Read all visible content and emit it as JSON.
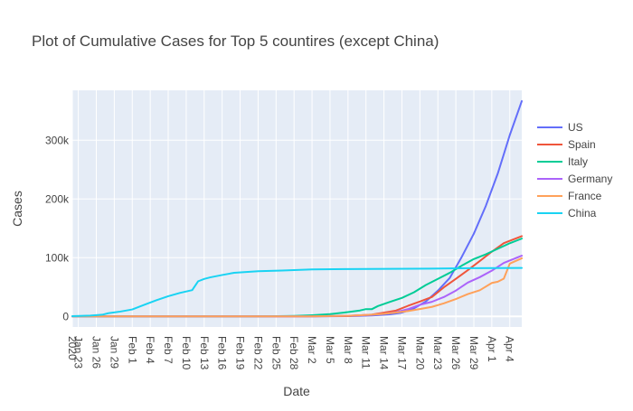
{
  "chart_data": {
    "type": "line",
    "title": "Plot of Cumulative Cases for Top 5 countires (except China)",
    "xlabel": "Date",
    "ylabel": "Cases",
    "x_range": [
      "2020-01-22",
      "2020-04-06"
    ],
    "ylim": [
      -18000,
      385000
    ],
    "grid": true,
    "legend_position": "right",
    "x_ticks": [
      {
        "date": "2020-01-22",
        "label": "2020"
      },
      {
        "date": "2020-01-23",
        "label": "Jan 23"
      },
      {
        "date": "2020-01-26",
        "label": "Jan 26"
      },
      {
        "date": "2020-01-29",
        "label": "Jan 29"
      },
      {
        "date": "2020-02-01",
        "label": "Feb 1"
      },
      {
        "date": "2020-02-04",
        "label": "Feb 4"
      },
      {
        "date": "2020-02-07",
        "label": "Feb 7"
      },
      {
        "date": "2020-02-10",
        "label": "Feb 10"
      },
      {
        "date": "2020-02-13",
        "label": "Feb 13"
      },
      {
        "date": "2020-02-16",
        "label": "Feb 16"
      },
      {
        "date": "2020-02-19",
        "label": "Feb 19"
      },
      {
        "date": "2020-02-22",
        "label": "Feb 22"
      },
      {
        "date": "2020-02-25",
        "label": "Feb 25"
      },
      {
        "date": "2020-02-28",
        "label": "Feb 28"
      },
      {
        "date": "2020-03-02",
        "label": "Mar 2"
      },
      {
        "date": "2020-03-05",
        "label": "Mar 5"
      },
      {
        "date": "2020-03-08",
        "label": "Mar 8"
      },
      {
        "date": "2020-03-11",
        "label": "Mar 11"
      },
      {
        "date": "2020-03-14",
        "label": "Mar 14"
      },
      {
        "date": "2020-03-17",
        "label": "Mar 17"
      },
      {
        "date": "2020-03-20",
        "label": "Mar 20"
      },
      {
        "date": "2020-03-23",
        "label": "Mar 23"
      },
      {
        "date": "2020-03-26",
        "label": "Mar 26"
      },
      {
        "date": "2020-03-29",
        "label": "Mar 29"
      },
      {
        "date": "2020-04-01",
        "label": "Apr 1"
      },
      {
        "date": "2020-04-04",
        "label": "Apr 4"
      }
    ],
    "y_ticks": [
      {
        "value": 0,
        "label": "0"
      },
      {
        "value": 100000,
        "label": "100k"
      },
      {
        "value": 200000,
        "label": "200k"
      },
      {
        "value": 300000,
        "label": "300k"
      }
    ],
    "series": [
      {
        "name": "US",
        "color": "#636efa",
        "points": [
          [
            "2020-01-22",
            1
          ],
          [
            "2020-02-29",
            68
          ],
          [
            "2020-03-05",
            217
          ],
          [
            "2020-03-09",
            589
          ],
          [
            "2020-03-12",
            1663
          ],
          [
            "2020-03-15",
            3499
          ],
          [
            "2020-03-17",
            6421
          ],
          [
            "2020-03-19",
            13680
          ],
          [
            "2020-03-21",
            25489
          ],
          [
            "2020-03-23",
            43847
          ],
          [
            "2020-03-25",
            65778
          ],
          [
            "2020-03-27",
            101657
          ],
          [
            "2020-03-29",
            140886
          ],
          [
            "2020-03-31",
            188172
          ],
          [
            "2020-04-02",
            243453
          ],
          [
            "2020-04-04",
            308850
          ],
          [
            "2020-04-06",
            366614
          ]
        ]
      },
      {
        "name": "Spain",
        "color": "#ef553b",
        "points": [
          [
            "2020-01-22",
            0
          ],
          [
            "2020-03-01",
            84
          ],
          [
            "2020-03-08",
            673
          ],
          [
            "2020-03-12",
            3146
          ],
          [
            "2020-03-14",
            6391
          ],
          [
            "2020-03-16",
            9942
          ],
          [
            "2020-03-18",
            17963
          ],
          [
            "2020-03-20",
            25374
          ],
          [
            "2020-03-22",
            33089
          ],
          [
            "2020-03-24",
            49515
          ],
          [
            "2020-03-26",
            64059
          ],
          [
            "2020-03-28",
            78797
          ],
          [
            "2020-03-30",
            94417
          ],
          [
            "2020-04-01",
            110238
          ],
          [
            "2020-04-03",
            124736
          ],
          [
            "2020-04-06",
            136675
          ]
        ]
      },
      {
        "name": "Italy",
        "color": "#00cc96",
        "points": [
          [
            "2020-01-22",
            0
          ],
          [
            "2020-02-21",
            20
          ],
          [
            "2020-02-24",
            229
          ],
          [
            "2020-02-28",
            888
          ],
          [
            "2020-03-02",
            2036
          ],
          [
            "2020-03-05",
            3858
          ],
          [
            "2020-03-08",
            7375
          ],
          [
            "2020-03-10",
            10149
          ],
          [
            "2020-03-11",
            12462
          ],
          [
            "2020-03-12",
            12462
          ],
          [
            "2020-03-13",
            17660
          ],
          [
            "2020-03-15",
            24747
          ],
          [
            "2020-03-17",
            31506
          ],
          [
            "2020-03-19",
            41035
          ],
          [
            "2020-03-21",
            53578
          ],
          [
            "2020-03-23",
            63927
          ],
          [
            "2020-03-25",
            74386
          ],
          [
            "2020-03-27",
            86498
          ],
          [
            "2020-03-29",
            97689
          ],
          [
            "2020-03-31",
            105792
          ],
          [
            "2020-04-02",
            115242
          ],
          [
            "2020-04-04",
            124632
          ],
          [
            "2020-04-06",
            132547
          ]
        ]
      },
      {
        "name": "Germany",
        "color": "#ab63fa",
        "points": [
          [
            "2020-01-22",
            0
          ],
          [
            "2020-01-28",
            4
          ],
          [
            "2020-03-01",
            130
          ],
          [
            "2020-03-08",
            1040
          ],
          [
            "2020-03-12",
            2745
          ],
          [
            "2020-03-14",
            4585
          ],
          [
            "2020-03-16",
            7272
          ],
          [
            "2020-03-18",
            12327
          ],
          [
            "2020-03-20",
            19848
          ],
          [
            "2020-03-22",
            24873
          ],
          [
            "2020-03-24",
            32986
          ],
          [
            "2020-03-26",
            43938
          ],
          [
            "2020-03-28",
            57695
          ],
          [
            "2020-03-30",
            66885
          ],
          [
            "2020-04-01",
            77872
          ],
          [
            "2020-04-03",
            91159
          ],
          [
            "2020-04-06",
            103374
          ]
        ]
      },
      {
        "name": "France",
        "color": "#ffa15a",
        "points": [
          [
            "2020-01-22",
            0
          ],
          [
            "2020-01-24",
            2
          ],
          [
            "2020-03-01",
            130
          ],
          [
            "2020-03-08",
            1126
          ],
          [
            "2020-03-12",
            2896
          ],
          [
            "2020-03-14",
            4513
          ],
          [
            "2020-03-16",
            6664
          ],
          [
            "2020-03-18",
            9105
          ],
          [
            "2020-03-20",
            12632
          ],
          [
            "2020-03-22",
            16243
          ],
          [
            "2020-03-24",
            22304
          ],
          [
            "2020-03-26",
            29551
          ],
          [
            "2020-03-28",
            38105
          ],
          [
            "2020-03-30",
            44550
          ],
          [
            "2020-04-01",
            56989
          ],
          [
            "2020-04-02",
            59105
          ],
          [
            "2020-04-03",
            64338
          ],
          [
            "2020-04-04",
            89953
          ],
          [
            "2020-04-06",
            98963
          ]
        ]
      },
      {
        "name": "China",
        "color": "#19d3f3",
        "points": [
          [
            "2020-01-22",
            548
          ],
          [
            "2020-01-25",
            1399
          ],
          [
            "2020-01-27",
            2886
          ],
          [
            "2020-01-28",
            5509
          ],
          [
            "2020-01-30",
            8235
          ],
          [
            "2020-02-01",
            11891
          ],
          [
            "2020-02-03",
            19716
          ],
          [
            "2020-02-05",
            27440
          ],
          [
            "2020-02-07",
            34392
          ],
          [
            "2020-02-09",
            40151
          ],
          [
            "2020-02-11",
            44763
          ],
          [
            "2020-02-12",
            59882
          ],
          [
            "2020-02-13",
            63851
          ],
          [
            "2020-02-14",
            66492
          ],
          [
            "2020-02-16",
            70548
          ],
          [
            "2020-02-18",
            74280
          ],
          [
            "2020-02-22",
            76936
          ],
          [
            "2020-02-26",
            78166
          ],
          [
            "2020-03-02",
            80151
          ],
          [
            "2020-03-08",
            80699
          ],
          [
            "2020-03-15",
            80977
          ],
          [
            "2020-03-22",
            81435
          ],
          [
            "2020-03-29",
            82122
          ],
          [
            "2020-04-06",
            82641
          ]
        ]
      }
    ]
  }
}
